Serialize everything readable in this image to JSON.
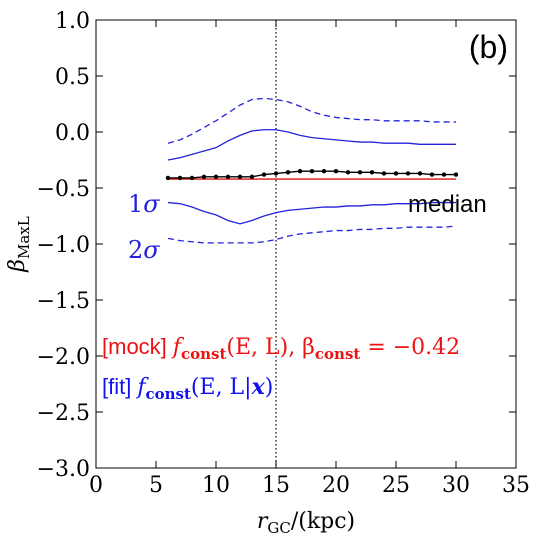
{
  "chart_data": {
    "type": "line",
    "panel_label": "(b)",
    "xlabel": "r_GC/(kpc)",
    "xlabel_main": "r",
    "xlabel_sub": "GC",
    "xlabel_tail": "/(kpc)",
    "ylabel_main": "β",
    "ylabel_sub": "MaxL",
    "xlim": [
      0,
      35
    ],
    "ylim": [
      -3.0,
      1.0
    ],
    "xticks": [
      "0",
      "5",
      "10",
      "15",
      "20",
      "25",
      "30",
      "35"
    ],
    "yticks": [
      "1.0",
      "0.5",
      "0.0",
      "−0.5",
      "−1.0",
      "−1.5",
      "−2.0",
      "−2.5",
      "−3.0"
    ],
    "vline_x": 15,
    "grid": false,
    "series": [
      {
        "style": "dashed",
        "color": "#2222dd",
        "x": [
          6,
          7,
          8,
          9,
          10,
          11,
          12,
          13,
          14,
          15,
          16,
          17,
          18,
          19,
          20,
          21,
          22,
          23,
          24,
          25,
          26,
          27,
          28,
          29,
          30
        ],
        "y": [
          -0.1,
          -0.07,
          -0.02,
          0.04,
          0.1,
          0.17,
          0.24,
          0.29,
          0.3,
          0.29,
          0.27,
          0.23,
          0.18,
          0.15,
          0.13,
          0.12,
          0.11,
          0.11,
          0.1,
          0.1,
          0.1,
          0.1,
          0.09,
          0.09,
          0.09
        ]
      },
      {
        "style": "solid",
        "color": "#2222dd",
        "x": [
          6,
          7,
          8,
          9,
          10,
          11,
          12,
          13,
          14,
          15,
          16,
          17,
          18,
          19,
          20,
          21,
          22,
          23,
          24,
          25,
          26,
          27,
          28,
          29,
          30
        ],
        "y": [
          -0.25,
          -0.23,
          -0.2,
          -0.17,
          -0.14,
          -0.08,
          -0.03,
          0.01,
          0.02,
          0.02,
          0.0,
          -0.03,
          -0.05,
          -0.06,
          -0.07,
          -0.08,
          -0.09,
          -0.09,
          -0.1,
          -0.1,
          -0.1,
          -0.11,
          -0.11,
          -0.11,
          -0.11
        ]
      },
      {
        "style": "solid",
        "color": "#2222dd",
        "x": [
          6,
          7,
          8,
          9,
          10,
          11,
          12,
          13,
          14,
          15,
          16,
          17,
          18,
          19,
          20,
          21,
          22,
          23,
          24,
          25,
          26,
          27,
          28,
          29,
          30
        ],
        "y": [
          -0.63,
          -0.64,
          -0.67,
          -0.71,
          -0.74,
          -0.79,
          -0.82,
          -0.79,
          -0.75,
          -0.72,
          -0.7,
          -0.69,
          -0.68,
          -0.67,
          -0.67,
          -0.66,
          -0.66,
          -0.65,
          -0.65,
          -0.64,
          -0.64,
          -0.64,
          -0.63,
          -0.63,
          -0.63
        ]
      },
      {
        "style": "dashed",
        "color": "#2222dd",
        "x": [
          6,
          7,
          8,
          9,
          10,
          11,
          12,
          13,
          14,
          15,
          16,
          17,
          18,
          19,
          20,
          21,
          22,
          23,
          24,
          25,
          26,
          27,
          28,
          29,
          30
        ],
        "y": [
          -0.95,
          -0.97,
          -0.98,
          -0.99,
          -0.99,
          -0.99,
          -0.99,
          -0.99,
          -0.98,
          -0.96,
          -0.93,
          -0.91,
          -0.9,
          -0.89,
          -0.88,
          -0.88,
          -0.87,
          -0.87,
          -0.86,
          -0.86,
          -0.85,
          -0.85,
          -0.85,
          -0.85,
          -0.84
        ]
      },
      {
        "style": "solid",
        "color": "#dd1111",
        "x": [
          6,
          30
        ],
        "y": [
          -0.42,
          -0.42
        ]
      },
      {
        "style": "dots",
        "color": "#000000",
        "x": [
          6,
          7,
          8,
          9,
          10,
          11,
          12,
          13,
          14,
          15,
          16,
          17,
          18,
          19,
          20,
          21,
          22,
          23,
          24,
          25,
          26,
          27,
          28,
          29,
          30
        ],
        "y": [
          -0.41,
          -0.41,
          -0.41,
          -0.4,
          -0.4,
          -0.4,
          -0.4,
          -0.4,
          -0.38,
          -0.37,
          -0.36,
          -0.35,
          -0.35,
          -0.35,
          -0.35,
          -0.36,
          -0.36,
          -0.36,
          -0.37,
          -0.37,
          -0.37,
          -0.37,
          -0.38,
          -0.38,
          -0.38
        ]
      }
    ],
    "annotations": {
      "one_sigma_num": "1",
      "one_sigma_sym": "σ",
      "two_sigma_num": "2",
      "two_sigma_sym": "σ",
      "median": "median",
      "mock_tag": "[mock]",
      "mock_formula": "f",
      "mock_sub": "const",
      "mock_args": "(E, L),  β",
      "mock_sub2": "const",
      "mock_value": " = −0.42",
      "fit_tag": "[fit]",
      "fit_formula": "f",
      "fit_sub": "const",
      "fit_args": "(E, L|",
      "fit_bold": "x",
      "fit_close": ")"
    }
  }
}
